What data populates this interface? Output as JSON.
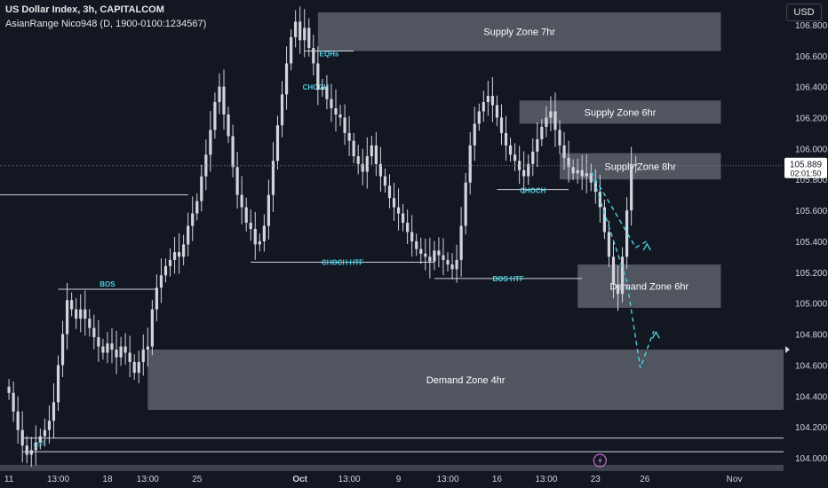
{
  "header": {
    "title": "US Dollar Index, 3h, CAPITALCOM",
    "indicator": "AsianRange Nico948 (D, 1900-0100:1234567)",
    "currency_button": "USD"
  },
  "price_label": {
    "price": "105.889",
    "countdown": "02:01:50"
  },
  "colors": {
    "background": "#131722",
    "candle": "#d1d4dc",
    "zone_fill": "#5d606b",
    "structure_label": "#4dd0e1",
    "projection": "#4dd0e1",
    "axis_text": "#d1d4dc",
    "lightning": "#ba68c8"
  },
  "chart_data": {
    "type": "candlestick",
    "title": "US Dollar Index, 3h, CAPITALCOM",
    "ylim": [
      103.92,
      106.96
    ],
    "y_ticks": [
      104.0,
      104.2,
      104.4,
      104.6,
      104.8,
      105.0,
      105.2,
      105.4,
      105.6,
      105.8,
      106.0,
      106.2,
      106.4,
      106.6,
      106.8
    ],
    "y_tick_labels": [
      "104.000",
      "104.200",
      "104.400",
      "104.600",
      "104.800",
      "105.000",
      "105.200",
      "105.400",
      "105.600",
      "105.800",
      "106.000",
      "106.200",
      "106.400",
      "106.600",
      "106.800"
    ],
    "x_tick_labels": [
      "11",
      "13:00",
      "18",
      "13:00",
      "25",
      "Oct",
      "13:00",
      "9",
      "13:00",
      "16",
      "13:00",
      "23",
      "26",
      "Nov"
    ],
    "x_tick_indices": [
      0,
      11,
      22,
      31,
      42,
      65,
      76,
      87,
      98,
      109,
      120,
      131,
      142,
      162
    ],
    "bar_range": [
      -2,
      173
    ],
    "last_price": 105.889,
    "closes": [
      104.42,
      104.3,
      104.18,
      104.08,
      104.02,
      104.05,
      104.1,
      104.14,
      104.18,
      104.24,
      104.36,
      104.6,
      104.8,
      105.02,
      104.96,
      104.9,
      104.96,
      104.9,
      104.84,
      104.78,
      104.72,
      104.68,
      104.74,
      104.7,
      104.65,
      104.72,
      104.68,
      104.62,
      104.55,
      104.62,
      104.7,
      104.72,
      104.96,
      105.1,
      105.18,
      105.24,
      105.28,
      105.33,
      105.3,
      105.38,
      105.5,
      105.58,
      105.66,
      105.82,
      105.96,
      106.12,
      106.3,
      106.4,
      106.22,
      106.08,
      105.88,
      105.7,
      105.62,
      105.52,
      105.48,
      105.38,
      105.4,
      105.5,
      105.7,
      105.92,
      106.15,
      106.35,
      106.55,
      106.72,
      106.82,
      106.7,
      106.78,
      106.65,
      106.55,
      106.38,
      106.4,
      106.32,
      106.26,
      106.22,
      106.2,
      106.1,
      106.05,
      105.95,
      105.9,
      105.85,
      105.95,
      106.02,
      105.9,
      105.82,
      105.76,
      105.68,
      105.62,
      105.58,
      105.52,
      105.46,
      105.4,
      105.35,
      105.32,
      105.3,
      105.27,
      105.34,
      105.31,
      105.28,
      105.25,
      105.22,
      105.28,
      105.5,
      105.78,
      106.02,
      106.16,
      106.24,
      106.3,
      106.34,
      106.28,
      106.2,
      106.1,
      106.02,
      105.96,
      105.92,
      105.86,
      105.82,
      105.9,
      105.98,
      106.06,
      106.14,
      106.2,
      106.24,
      106.12,
      106.02,
      105.94,
      105.88,
      105.84,
      105.86,
      105.82,
      105.84,
      105.78,
      105.72,
      105.62,
      105.46,
      105.3,
      105.12,
      105.06,
      105.3,
      105.6,
      105.9,
      105.889
    ],
    "structure_levels": [
      {
        "label": "",
        "price": 105.7,
        "from_index": -2,
        "to_index": 40
      },
      {
        "label": "BOS",
        "price": 105.09,
        "from_index": 11,
        "to_index": 33
      },
      {
        "label": "CHOCH HTF",
        "price": 105.265,
        "from_index": 54,
        "to_index": 95
      },
      {
        "label": "EQHs",
        "price": 106.63,
        "from_index": 66,
        "to_index": 77
      },
      {
        "label": "BOS HTF",
        "price": 105.16,
        "from_index": 95,
        "to_index": 128
      },
      {
        "label": "CHOCH",
        "price": 105.735,
        "from_index": 109,
        "to_index": 125
      },
      {
        "label": "",
        "price": 104.128,
        "from_index": 3,
        "to_index": 173
      },
      {
        "label": "",
        "price": 104.04,
        "from_index": 3,
        "to_index": 173
      }
    ],
    "lower_band": {
      "price_top": 103.955,
      "price_bottom": 103.915
    },
    "swing_label": {
      "label": "SSS",
      "index": 7,
      "price": 104.075
    },
    "zones": [
      {
        "label": "Supply Zone 7hr",
        "top": 106.88,
        "bottom": 106.63,
        "from_index": 69,
        "to_index": 159
      },
      {
        "label": "Supply Zone 6hr",
        "top": 106.31,
        "bottom": 106.16,
        "from_index": 114,
        "to_index": 159
      },
      {
        "label": "Supply Zone 8hr",
        "top": 105.97,
        "bottom": 105.8,
        "from_index": 123,
        "to_index": 159
      },
      {
        "label": "Demand Zone 6hr",
        "top": 105.25,
        "bottom": 104.97,
        "from_index": 127,
        "to_index": 159
      },
      {
        "label": "Demand Zone 4hr",
        "top": 104.7,
        "bottom": 104.31,
        "from_index": 31,
        "to_index": 173
      }
    ],
    "projection_paths": [
      {
        "points": [
          [
            130,
            105.85
          ],
          [
            140,
            105.36
          ],
          [
            143,
            105.41
          ]
        ]
      },
      {
        "points": [
          [
            130,
            105.85
          ],
          [
            138,
            105.14
          ],
          [
            141,
            104.58
          ],
          [
            144,
            104.82
          ]
        ]
      }
    ],
    "arrowheads": [
      {
        "index": 142.5,
        "price": 105.36
      },
      {
        "index": 144.5,
        "price": 104.79
      }
    ],
    "events": [
      {
        "icon": "lightning-icon",
        "index": 132
      }
    ]
  }
}
